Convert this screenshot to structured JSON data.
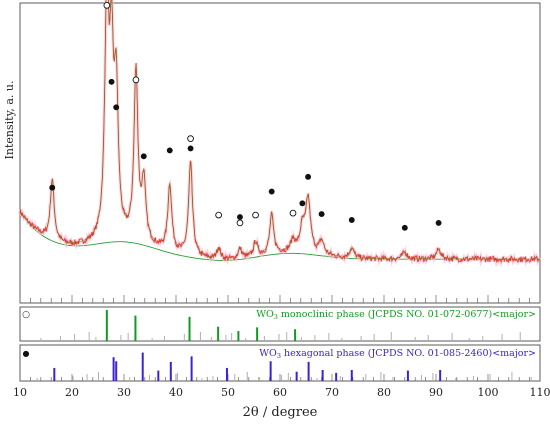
{
  "chart_data": {
    "type": "line",
    "xlabel": "2θ / degree",
    "ylabel": "Intensity, a. u.",
    "xlim": [
      10,
      110
    ],
    "x_ticks": [
      10,
      20,
      30,
      40,
      50,
      60,
      70,
      80,
      90,
      100,
      110
    ],
    "colors": {
      "measured": "#e53935",
      "fit": "#6b7d1f",
      "background": "#2e9d3a",
      "monoclinic": "#149a24",
      "hexagonal": "#3b22d6",
      "reflection": "#b0b0b0"
    },
    "pattern_peaks": [
      {
        "x": 16.2,
        "y": 62
      },
      {
        "x": 26.7,
        "y": 245
      },
      {
        "x": 27.6,
        "y": 172
      },
      {
        "x": 28.5,
        "y": 145
      },
      {
        "x": 32.3,
        "y": 172
      },
      {
        "x": 33.8,
        "y": 60
      },
      {
        "x": 38.8,
        "y": 68
      },
      {
        "x": 42.8,
        "y": 95
      },
      {
        "x": 48.2,
        "y": 12
      },
      {
        "x": 52.3,
        "y": 10
      },
      {
        "x": 55.3,
        "y": 15
      },
      {
        "x": 58.4,
        "y": 40
      },
      {
        "x": 62.5,
        "y": 12
      },
      {
        "x": 64.3,
        "y": 24
      },
      {
        "x": 65.4,
        "y": 55
      },
      {
        "x": 68.0,
        "y": 14
      },
      {
        "x": 73.8,
        "y": 10
      },
      {
        "x": 84.0,
        "y": 7
      },
      {
        "x": 90.5,
        "y": 10
      }
    ],
    "markers": [
      {
        "x": 16.2,
        "y": 82,
        "symbol": "filled"
      },
      {
        "x": 26.7,
        "y": 268,
        "symbol": "open"
      },
      {
        "x": 27.6,
        "y": 190,
        "symbol": "filled"
      },
      {
        "x": 28.5,
        "y": 164,
        "symbol": "filled"
      },
      {
        "x": 32.3,
        "y": 192,
        "symbol": "open"
      },
      {
        "x": 33.8,
        "y": 114,
        "symbol": "filled"
      },
      {
        "x": 38.8,
        "y": 120,
        "symbol": "filled"
      },
      {
        "x": 42.8,
        "y": 132,
        "symbol": "open"
      },
      {
        "x": 42.8,
        "y": 122,
        "symbol": "filled"
      },
      {
        "x": 48.2,
        "y": 54,
        "symbol": "open"
      },
      {
        "x": 52.3,
        "y": 52,
        "symbol": "filled"
      },
      {
        "x": 52.3,
        "y": 46,
        "symbol": "open"
      },
      {
        "x": 55.3,
        "y": 54,
        "symbol": "open"
      },
      {
        "x": 58.4,
        "y": 78,
        "symbol": "filled"
      },
      {
        "x": 62.5,
        "y": 56,
        "symbol": "open"
      },
      {
        "x": 64.3,
        "y": 66,
        "symbol": "filled"
      },
      {
        "x": 65.4,
        "y": 93,
        "symbol": "filled"
      },
      {
        "x": 68.0,
        "y": 55,
        "symbol": "filled"
      },
      {
        "x": 73.8,
        "y": 49,
        "symbol": "filled"
      },
      {
        "x": 84.0,
        "y": 41,
        "symbol": "filled"
      },
      {
        "x": 90.5,
        "y": 46,
        "symbol": "filled"
      }
    ],
    "monoclinic": {
      "label": "WO3 monoclinic phase (JCPDS NO. 01-072-0677)<major>",
      "label_main": "WO",
      "label_sub": "3",
      "label_rest": " monoclinic phase (JCPDS NO. 01-072-0677)<major>",
      "marker": "○",
      "major": [
        {
          "x": 26.7,
          "h": 1.0
        },
        {
          "x": 32.2,
          "h": 0.82
        },
        {
          "x": 42.6,
          "h": 0.78
        },
        {
          "x": 48.1,
          "h": 0.46
        },
        {
          "x": 52.0,
          "h": 0.32
        },
        {
          "x": 55.6,
          "h": 0.44
        },
        {
          "x": 62.9,
          "h": 0.38
        }
      ],
      "minor": [
        14.0,
        17.8,
        20.5,
        23.3,
        24.6,
        29.4,
        30.8,
        35.4,
        37.8,
        41.6,
        44.7,
        46.8,
        49.6,
        50.7,
        53.4,
        57.0,
        59.8,
        61.3,
        64.1,
        66.7,
        69.4,
        71.9,
        75.6,
        78.1,
        81.4,
        86.0,
        88.5,
        93.1,
        96.4,
        99.0,
        102.7,
        106.2
      ]
    },
    "hexagonal": {
      "label": "WO3 hexagonal phase (JCPDS NO. 01-085-2460)<major>",
      "label_main": "WO",
      "label_sub": "3",
      "label_rest": " hexagonal phase (JCPDS NO. 01-085-2460)<major>",
      "marker": "●",
      "major": [
        {
          "x": 16.6,
          "h": 0.45
        },
        {
          "x": 28.0,
          "h": 0.82
        },
        {
          "x": 28.5,
          "h": 0.68
        },
        {
          "x": 33.6,
          "h": 0.98
        },
        {
          "x": 36.6,
          "h": 0.36
        },
        {
          "x": 39.0,
          "h": 0.66
        },
        {
          "x": 43.0,
          "h": 0.85
        },
        {
          "x": 49.8,
          "h": 0.45
        },
        {
          "x": 58.2,
          "h": 0.68
        },
        {
          "x": 63.2,
          "h": 0.32
        },
        {
          "x": 65.5,
          "h": 0.66
        },
        {
          "x": 68.2,
          "h": 0.38
        },
        {
          "x": 70.8,
          "h": 0.28
        },
        {
          "x": 73.8,
          "h": 0.38
        },
        {
          "x": 84.6,
          "h": 0.36
        },
        {
          "x": 90.8,
          "h": 0.38
        }
      ],
      "minor": [
        13.3,
        20.2,
        22.9,
        25.1,
        31.1,
        34.9,
        40.3,
        45.0,
        47.1,
        51.3,
        53.7,
        55.9,
        60.3,
        61.6,
        67.1,
        71.6,
        76.5,
        79.4,
        81.7,
        87.2,
        89.4,
        93.8,
        97.2,
        100.4,
        104.6,
        108.3
      ]
    }
  }
}
